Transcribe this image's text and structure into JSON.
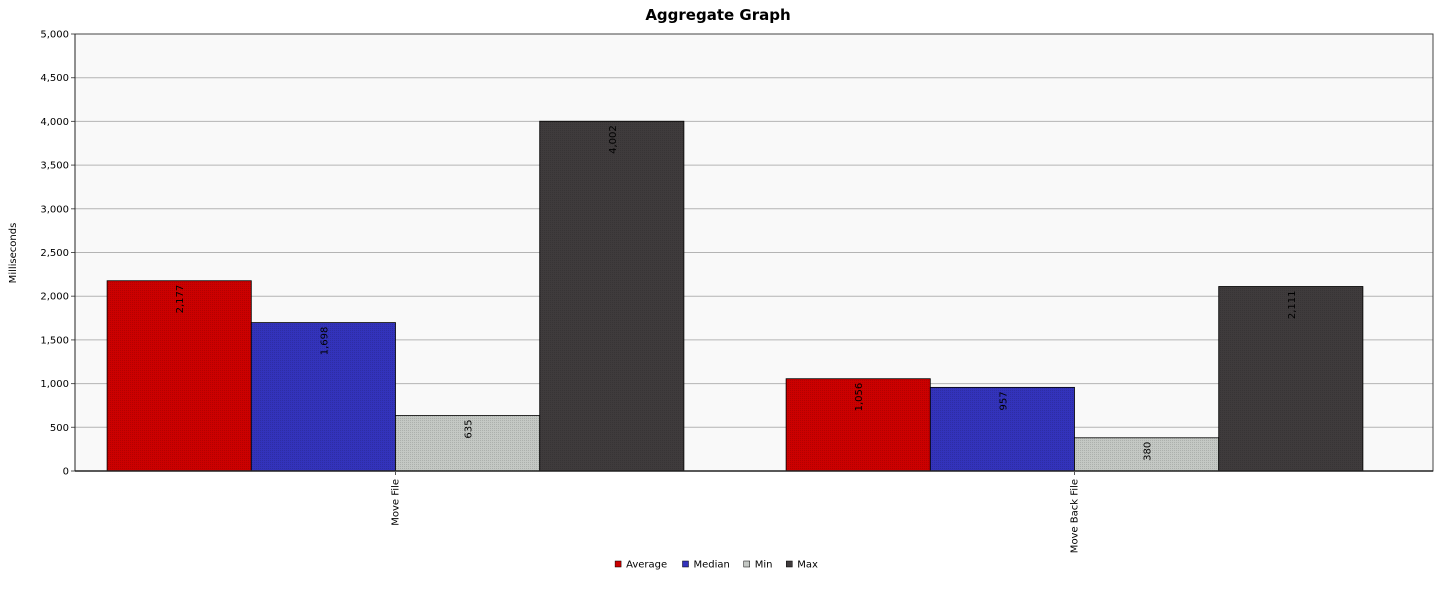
{
  "chart_data": {
    "type": "bar",
    "title": "Aggregate Graph",
    "xlabel": "",
    "ylabel": "Milliseconds",
    "ylim": [
      0,
      5000
    ],
    "yticks": [
      0,
      500,
      1000,
      1500,
      2000,
      2500,
      3000,
      3500,
      4000,
      4500,
      5000
    ],
    "ytick_labels": [
      "0",
      "500",
      "1,000",
      "1,500",
      "2,000",
      "2,500",
      "3,000",
      "3,500",
      "4,000",
      "4,500",
      "5,000"
    ],
    "categories": [
      "Move File",
      "Move Back File"
    ],
    "series": [
      {
        "name": "Average",
        "color": "#cc0000",
        "values": [
          2177,
          1056
        ],
        "labels": [
          "2,177",
          "1,056"
        ]
      },
      {
        "name": "Median",
        "color": "#3333bb",
        "values": [
          1698,
          957
        ],
        "labels": [
          "1,698",
          "957"
        ]
      },
      {
        "name": "Min",
        "color": "#c4c8c4",
        "values": [
          635,
          380
        ],
        "labels": [
          "635",
          "380"
        ]
      },
      {
        "name": "Max",
        "color": "#3f3b3c",
        "values": [
          4002,
          2111
        ],
        "labels": [
          "4,002",
          "2,111"
        ]
      }
    ],
    "grid": true,
    "legend_position": "bottom-center",
    "plot_background": "#f9f9f9",
    "gridline_color": "#b4b4b4"
  }
}
